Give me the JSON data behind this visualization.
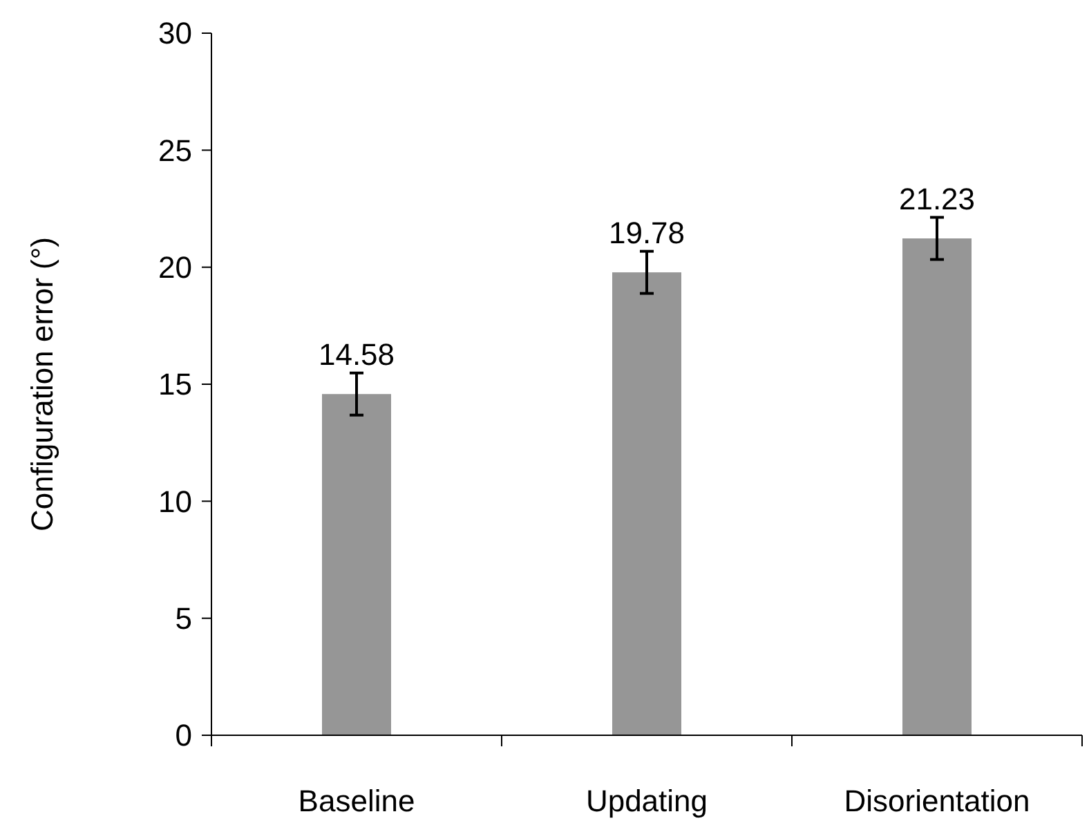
{
  "chart_data": {
    "type": "bar",
    "ylabel": "Configuration error (°)",
    "categories": [
      "Baseline",
      "Updating",
      "Disorientation"
    ],
    "values": [
      14.58,
      19.78,
      21.23
    ],
    "errors": [
      0.9,
      0.9,
      0.9
    ],
    "color": "#969696",
    "ylim": [
      0,
      30
    ],
    "yticks": [
      0,
      5,
      10,
      15,
      20,
      25,
      30
    ],
    "data_labels": true,
    "grid": false
  }
}
